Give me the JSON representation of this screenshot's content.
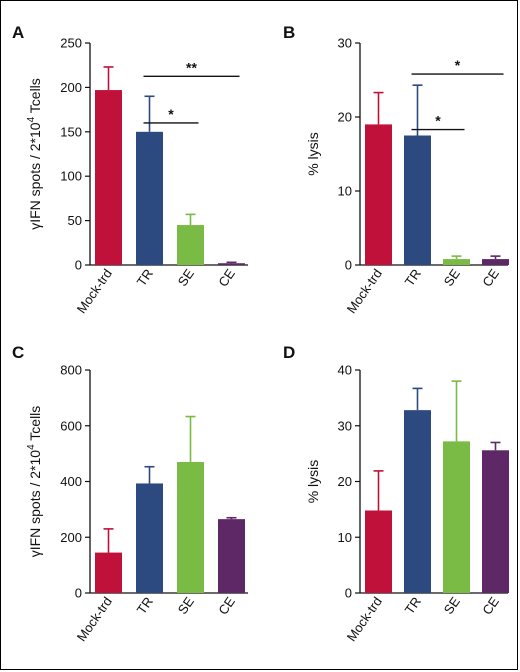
{
  "panels": [
    {
      "letter": "A",
      "yticks": [
        "0",
        "50",
        "100",
        "150",
        "200",
        "250"
      ],
      "ylabel_prefix": "γIFN spots / 2*10",
      "ylabel_sup": "4",
      "ylabel_suffix": " Tcells"
    },
    {
      "letter": "B",
      "yticks": [
        "0",
        "10",
        "20",
        "30"
      ],
      "ylabel_prefix": "% lysis",
      "ylabel_sup": "",
      "ylabel_suffix": ""
    },
    {
      "letter": "C",
      "yticks": [
        "0",
        "200",
        "400",
        "600",
        "800"
      ],
      "ylabel_prefix": "γIFN spots / 2*10",
      "ylabel_sup": "4",
      "ylabel_suffix": " Tcells"
    },
    {
      "letter": "D",
      "yticks": [
        "0",
        "10",
        "20",
        "30",
        "40"
      ],
      "ylabel_prefix": "% lysis",
      "ylabel_sup": "",
      "ylabel_suffix": ""
    }
  ],
  "chart_data": [
    {
      "panel": "A",
      "type": "bar",
      "categories": [
        "Mock-trd",
        "TR",
        "SE",
        "CE"
      ],
      "values": [
        197,
        150,
        45,
        2
      ],
      "errors": [
        26,
        40,
        12,
        1
      ],
      "colors": [
        "#c0113a",
        "#2d4a80",
        "#79bb45",
        "#5e2867"
      ],
      "ylim": [
        0,
        250
      ],
      "ylabel": "γIFN spots / 2*10^4 Tcells",
      "significance": [
        {
          "from": 1,
          "to": 2,
          "label": "*"
        },
        {
          "from": 1,
          "to": 3,
          "label": "**"
        }
      ]
    },
    {
      "panel": "B",
      "type": "bar",
      "categories": [
        "Mock-trd",
        "TR",
        "SE",
        "CE"
      ],
      "values": [
        19,
        17.5,
        0.8,
        0.8
      ],
      "errors": [
        4.3,
        6.8,
        0.4,
        0.4
      ],
      "colors": [
        "#c0113a",
        "#2d4a80",
        "#79bb45",
        "#5e2867"
      ],
      "ylim": [
        0,
        30
      ],
      "ylabel": "% lysis",
      "significance": [
        {
          "from": 1,
          "to": 2,
          "label": "*"
        },
        {
          "from": 1,
          "to": 3,
          "label": "*"
        }
      ]
    },
    {
      "panel": "C",
      "type": "bar",
      "categories": [
        "Mock-trd",
        "TR",
        "SE",
        "CE"
      ],
      "values": [
        145,
        393,
        470,
        265
      ],
      "errors": [
        85,
        60,
        163,
        5
      ],
      "colors": [
        "#c0113a",
        "#2d4a80",
        "#79bb45",
        "#5e2867"
      ],
      "ylim": [
        0,
        800
      ],
      "ylabel": "γIFN spots / 2*10^4 Tcells",
      "significance": []
    },
    {
      "panel": "D",
      "type": "bar",
      "categories": [
        "Mock-trd",
        "TR",
        "SE",
        "CE"
      ],
      "values": [
        14.8,
        32.8,
        27.2,
        25.6
      ],
      "errors": [
        7.1,
        3.9,
        10.8,
        1.4
      ],
      "colors": [
        "#c0113a",
        "#2d4a80",
        "#79bb45",
        "#5e2867"
      ],
      "ylim": [
        0,
        40
      ],
      "ylabel": "% lysis",
      "significance": []
    }
  ]
}
